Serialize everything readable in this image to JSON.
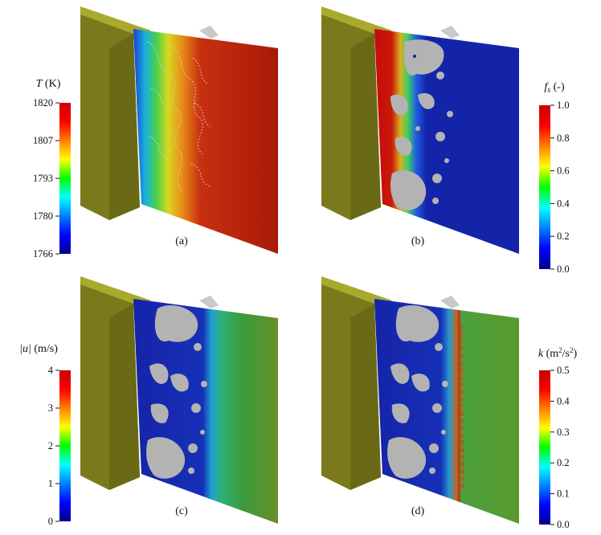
{
  "panels": [
    {
      "id": "a",
      "caption": "(a)",
      "field": "temperature"
    },
    {
      "id": "b",
      "caption": "(b)",
      "field": "solid-fraction"
    },
    {
      "id": "c",
      "caption": "(c)",
      "field": "velocity-magnitude"
    },
    {
      "id": "d",
      "caption": "(d)",
      "field": "turbulent-kinetic-energy"
    }
  ],
  "colorbars": [
    {
      "id": "T",
      "title_sym": "T",
      "title_unit": " (K)",
      "ticks": [
        "1820",
        "1807",
        "1793",
        "1780",
        "1766"
      ],
      "tick_side": "left"
    },
    {
      "id": "fs",
      "title_sym": "f",
      "title_sub": "s",
      "title_unit": " (-)",
      "ticks": [
        "1.0",
        "0.8",
        "0.6",
        "0.4",
        "0.2",
        "0.0"
      ],
      "tick_side": "right"
    },
    {
      "id": "u",
      "title_sym": "|u|",
      "title_unit": " (m/s)",
      "ticks": [
        "4",
        "3",
        "2",
        "1",
        "0"
      ],
      "tick_side": "left"
    },
    {
      "id": "k",
      "title_sym": "k",
      "title_unit": " (m",
      "title_sup": "2",
      "title_unit2": "/s",
      "title_sup2": "2",
      "title_unit3": ")",
      "ticks": [
        "0.5",
        "0.4",
        "0.3",
        "0.2",
        "0.1",
        "0.0"
      ],
      "tick_side": "right"
    }
  ],
  "colors": {
    "mould": "#7a7a1c",
    "mould_top": "#a9a92d",
    "mould_side": "#5f5f14",
    "solid": "#b3b3b3",
    "liquid_hot": "#8c1a0a",
    "liquid_far": "#5a9a2a",
    "shell_blue": "#1524a8"
  }
}
